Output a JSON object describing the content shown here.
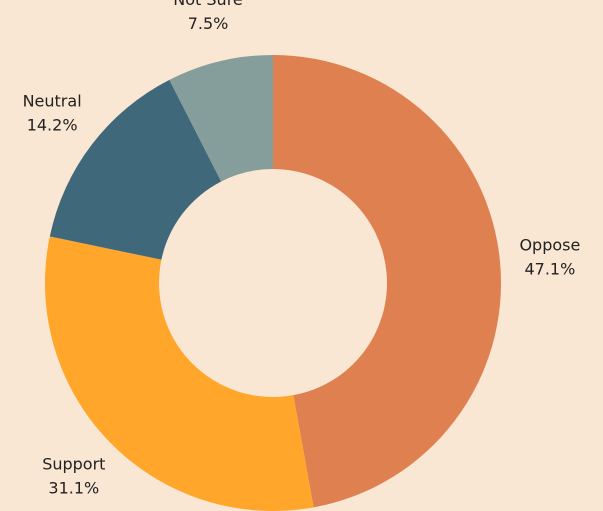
{
  "chart_data": {
    "type": "donut",
    "categories": [
      "Oppose",
      "Support",
      "Neutral",
      "Not Sure"
    ],
    "values": [
      47.1,
      31.1,
      14.2,
      7.5
    ],
    "value_labels": [
      "47.1%",
      "31.1%",
      "14.2%",
      "7.5%"
    ],
    "colors": [
      "#de804f",
      "#ffa62b",
      "#3f687b",
      "#869e9b"
    ]
  }
}
